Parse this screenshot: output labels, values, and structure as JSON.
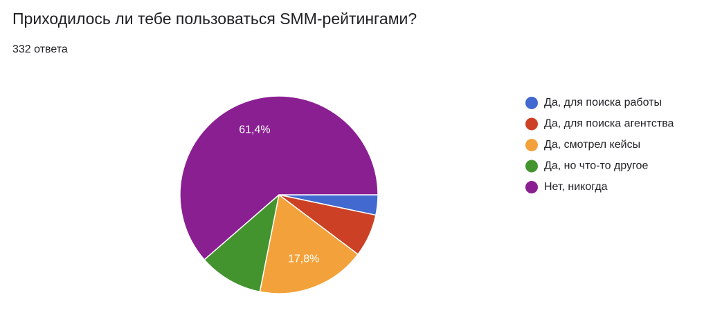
{
  "chart_data": {
    "type": "pie",
    "title": "Приходилось ли тебе пользоваться SMM-рейтингами?",
    "subtitle": "332 ответа",
    "categories": [
      "Да, для поиска работы",
      "Да, для поиска агентства",
      "Да, смотрел кейсы",
      "Да, но что-то другое",
      "Нет, никогда"
    ],
    "values": [
      3.3,
      7.0,
      17.8,
      10.5,
      61.4
    ],
    "value_labels": [
      null,
      null,
      "17,8%",
      null,
      "61,4%"
    ],
    "colors": [
      "#4169d0",
      "#cc4125",
      "#f3a23b",
      "#43942f",
      "#8a1f92"
    ],
    "legend": "right"
  }
}
